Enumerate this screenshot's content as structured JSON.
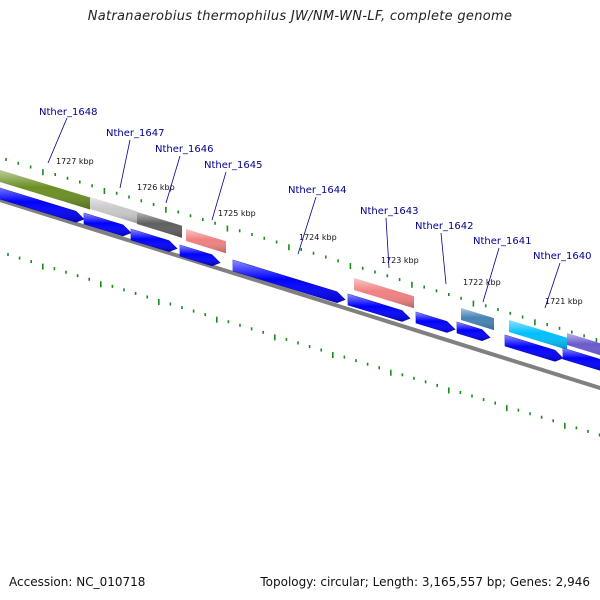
{
  "title": "Natranaerobius thermophilus JW/NM-WN-LF, complete genome",
  "footer": {
    "accession": "Accession: NC_010718",
    "stats": "Topology: circular; Length: 3,165,557 bp; Genes: 2,946"
  },
  "colors": {
    "backbone": "#808080",
    "tick": "#1a8a1a",
    "arrow": "#0000ff",
    "label": "#00008b"
  },
  "kbp_labels": [
    "1727 kbp",
    "1726 kbp",
    "1725 kbp",
    "1724 kbp",
    "1723 kbp",
    "1722 kbp",
    "1721 kbp"
  ],
  "genes": [
    {
      "name": "Nther_1648",
      "color": "#6b8e23"
    },
    {
      "name": "Nther_1647",
      "color": "#c8c8c8"
    },
    {
      "name": "Nther_1646",
      "color": "#5f5f5f"
    },
    {
      "name": "Nther_1645",
      "color": "#f08080"
    },
    {
      "name": "Nther_1644",
      "color": ""
    },
    {
      "name": "Nther_1643",
      "color": "#f08080"
    },
    {
      "name": "Nther_1642",
      "color": ""
    },
    {
      "name": "Nther_1641",
      "color": "#4682b4"
    },
    {
      "name": "Nther_1640",
      "color": "#00bfff"
    },
    {
      "name": "",
      "color": "#6a5acd"
    }
  ]
}
